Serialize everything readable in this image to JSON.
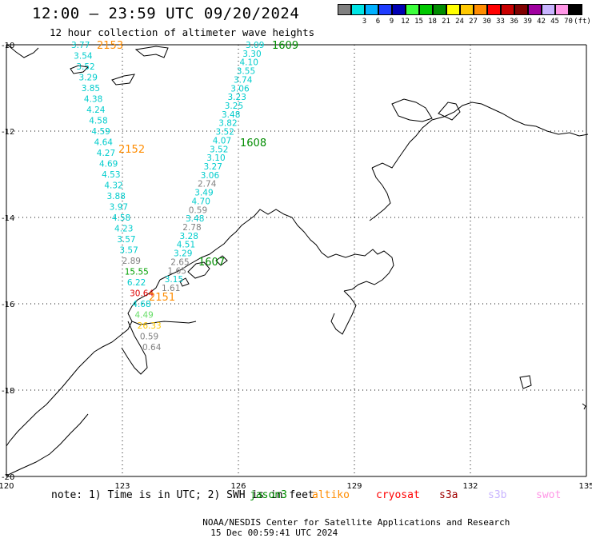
{
  "header": {
    "title": "12:00 — 23:59 UTC 09/20/2024",
    "subtitle": "12 hour collection of altimeter wave heights"
  },
  "colorbar": {
    "unit": "(ft)",
    "items": [
      {
        "label": "",
        "color": "#808080"
      },
      {
        "label": "3",
        "color": "#00e5e5"
      },
      {
        "label": "6",
        "color": "#00b0ff"
      },
      {
        "label": "9",
        "color": "#1e3cff"
      },
      {
        "label": "12",
        "color": "#0000b4"
      },
      {
        "label": "15",
        "color": "#3cff3c"
      },
      {
        "label": "18",
        "color": "#00c800"
      },
      {
        "label": "21",
        "color": "#008c00"
      },
      {
        "label": "24",
        "color": "#ffff00"
      },
      {
        "label": "27",
        "color": "#ffc800"
      },
      {
        "label": "30",
        "color": "#ff8c00"
      },
      {
        "label": "33",
        "color": "#ff0000"
      },
      {
        "label": "36",
        "color": "#c80000"
      },
      {
        "label": "39",
        "color": "#800000"
      },
      {
        "label": "42",
        "color": "#a000a0"
      },
      {
        "label": "45",
        "color": "#c8b4ff"
      },
      {
        "label": "70",
        "color": "#ff96e6"
      },
      {
        "label": "",
        "color": "#000000"
      }
    ]
  },
  "map": {
    "lon_ticks": [
      "120",
      "123",
      "126",
      "129",
      "132",
      "135"
    ],
    "lat_ticks": [
      "-10",
      "-12",
      "-14",
      "-16",
      "-18",
      "-20"
    ],
    "track_labels": [
      {
        "text": "2153",
        "color": "#ff8c00"
      },
      {
        "text": "2152",
        "color": "#ff8c00"
      },
      {
        "text": "2151",
        "color": "#ff8c00"
      },
      {
        "text": "1609",
        "color": "#008c00"
      },
      {
        "text": "1608",
        "color": "#008c00"
      },
      {
        "text": "1607",
        "color": "#008c00"
      }
    ],
    "wave_heights": [
      {
        "value": "3.77",
        "color": "#00cccc"
      },
      {
        "value": "3.54",
        "color": "#00cccc"
      },
      {
        "value": "3.52",
        "color": "#00cccc"
      },
      {
        "value": "3.29",
        "color": "#00cccc"
      },
      {
        "value": "3.85",
        "color": "#00cccc"
      },
      {
        "value": "4.38",
        "color": "#00cccc"
      },
      {
        "value": "4.24",
        "color": "#00cccc"
      },
      {
        "value": "4.58",
        "color": "#00cccc"
      },
      {
        "value": "4.59",
        "color": "#00cccc"
      },
      {
        "value": "4.64",
        "color": "#00cccc"
      },
      {
        "value": "4.27",
        "color": "#00cccc"
      },
      {
        "value": "4.69",
        "color": "#00cccc"
      },
      {
        "value": "4.53",
        "color": "#00cccc"
      },
      {
        "value": "4.32",
        "color": "#00cccc"
      },
      {
        "value": "3.88",
        "color": "#00cccc"
      },
      {
        "value": "3.97",
        "color": "#00cccc"
      },
      {
        "value": "4.58",
        "color": "#00cccc"
      },
      {
        "value": "4.23",
        "color": "#00cccc"
      },
      {
        "value": "3.57",
        "color": "#00cccc"
      },
      {
        "value": "3.57",
        "color": "#00cccc"
      },
      {
        "value": "2.89",
        "color": "#808080"
      },
      {
        "value": "15.55",
        "color": "#00a000"
      },
      {
        "value": "6.22",
        "color": "#00cccc"
      },
      {
        "value": "30.64",
        "color": "#dd0000"
      },
      {
        "value": "4.68",
        "color": "#00cccc"
      },
      {
        "value": "4.49",
        "color": "#66dd66"
      },
      {
        "value": "26.33",
        "color": "#ffc800"
      },
      {
        "value": "0.59",
        "color": "#808080"
      },
      {
        "value": "0.64",
        "color": "#808080"
      },
      {
        "value": "3.09",
        "color": "#00cccc"
      },
      {
        "value": "3.30",
        "color": "#00cccc"
      },
      {
        "value": "4.10",
        "color": "#00cccc"
      },
      {
        "value": "3.55",
        "color": "#00cccc"
      },
      {
        "value": "3.74",
        "color": "#00cccc"
      },
      {
        "value": "3.06",
        "color": "#00cccc"
      },
      {
        "value": "3.23",
        "color": "#00cccc"
      },
      {
        "value": "3.25",
        "color": "#00cccc"
      },
      {
        "value": "3.48",
        "color": "#00cccc"
      },
      {
        "value": "3.82",
        "color": "#00cccc"
      },
      {
        "value": "3.52",
        "color": "#00cccc"
      },
      {
        "value": "4.07",
        "color": "#00cccc"
      },
      {
        "value": "3.52",
        "color": "#00cccc"
      },
      {
        "value": "3.10",
        "color": "#00cccc"
      },
      {
        "value": "3.27",
        "color": "#00cccc"
      },
      {
        "value": "3.06",
        "color": "#00cccc"
      },
      {
        "value": "2.74",
        "color": "#808080"
      },
      {
        "value": "3.49",
        "color": "#00cccc"
      },
      {
        "value": "4.70",
        "color": "#00cccc"
      },
      {
        "value": "0.59",
        "color": "#808080"
      },
      {
        "value": "3.48",
        "color": "#00cccc"
      },
      {
        "value": "2.78",
        "color": "#808080"
      },
      {
        "value": "3.28",
        "color": "#00cccc"
      },
      {
        "value": "4.51",
        "color": "#00cccc"
      },
      {
        "value": "3.29",
        "color": "#00cccc"
      },
      {
        "value": "2.65",
        "color": "#808080"
      },
      {
        "value": "1.65",
        "color": "#808080"
      },
      {
        "value": "3.15",
        "color": "#00cccc"
      },
      {
        "value": "1.61",
        "color": "#808080"
      }
    ]
  },
  "note": {
    "text": "note: 1) Time is in UTC; 2) SWH is in feet",
    "satellites": [
      {
        "name": "jason3",
        "color": "#008c00"
      },
      {
        "name": "altiko",
        "color": "#ff8c00"
      },
      {
        "name": "cryosat",
        "color": "#ff0000"
      },
      {
        "name": "s3a",
        "color": "#a00000"
      },
      {
        "name": "s3b",
        "color": "#c8b4ff"
      },
      {
        "name": "swot",
        "color": "#ff96e6"
      }
    ]
  },
  "footer": {
    "credit": "NOAA/NESDIS Center for Satellite Applications and Research",
    "timestamp": "15 Dec 00:59:41 UTC 2024"
  }
}
